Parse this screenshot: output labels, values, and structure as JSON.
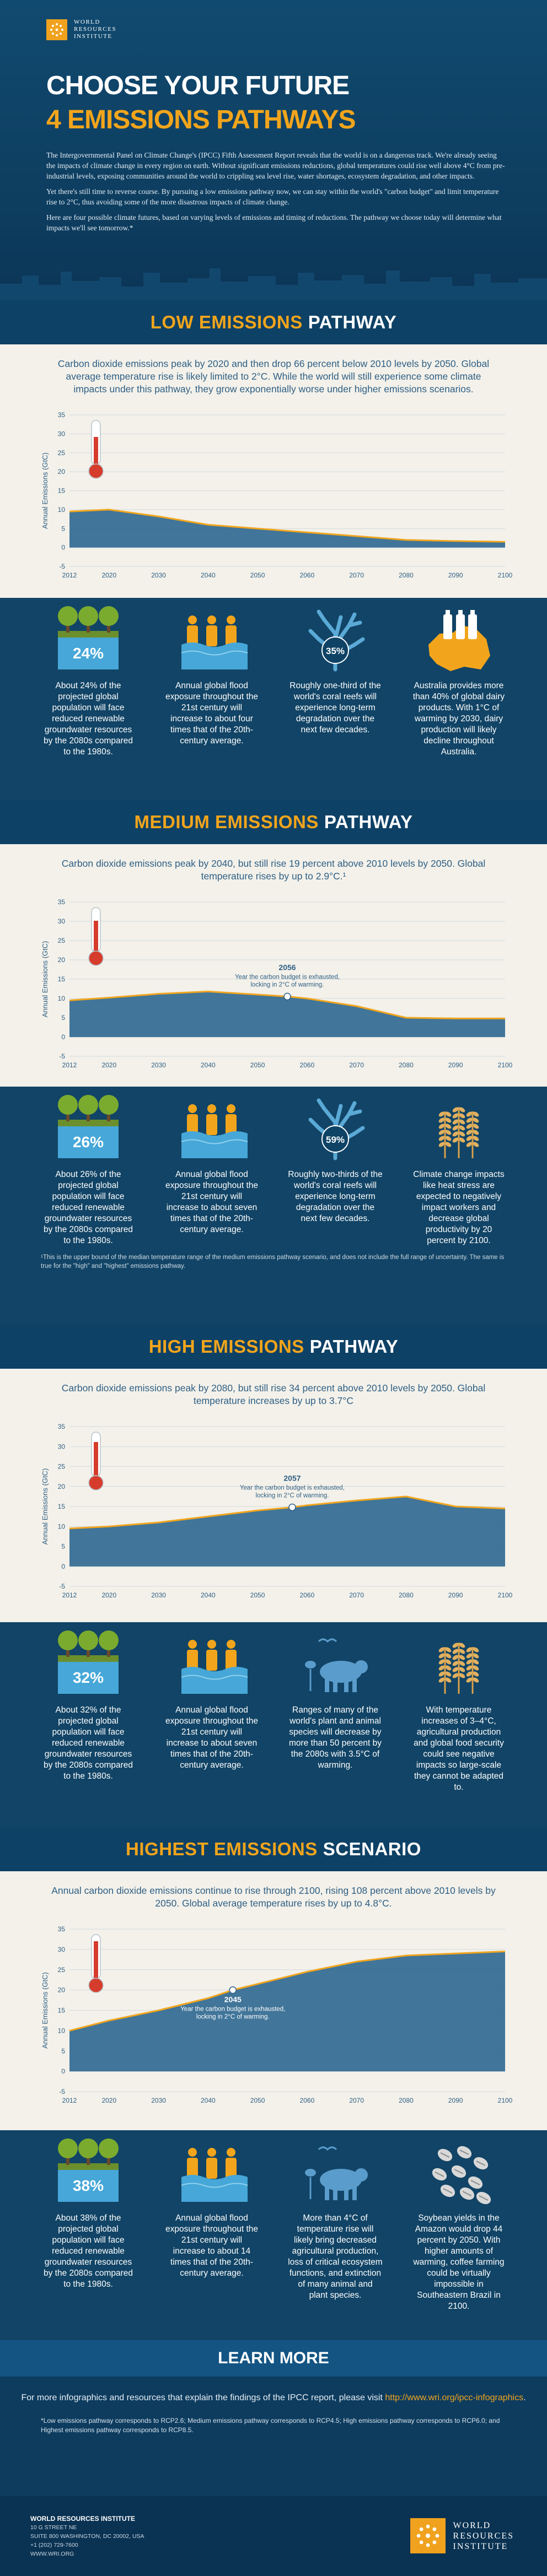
{
  "header": {
    "org_lines": [
      "WORLD",
      "RESOURCES",
      "INSTITUTE"
    ],
    "title_line1": "CHOOSE YOUR FUTURE",
    "title_line2": "4 EMISSIONS PATHWAYS",
    "intro_p1": "The Intergovernmental Panel on Climate Change's (IPCC) Fifth Assessment Report reveals that the world is on a dangerous track. We're already seeing the impacts of climate change in every region on earth. Without significant emissions reductions, global temperatures could rise well above 4°C from pre-industrial levels, exposing communities around the world to crippling sea level rise, water shortages, ecosystem degradation, and other impacts.",
    "intro_p2": "Yet there's still time to reverse course. By pursuing a low emissions pathway now, we can stay within the world's \"carbon budget\" and limit temperature rise to 2°C, thus avoiding some of the more disastrous impacts of climate change.",
    "intro_p3": "Here are four possible climate futures, based on varying levels of emissions and timing of reductions. The pathway we choose today will determine what impacts we'll see tomorrow.*"
  },
  "sections": [
    {
      "title_yellow": "LOW EMISSIONS",
      "title_white": "PATHWAY",
      "description": "Carbon dioxide emissions peak by 2020 and then drop 66 percent below 2010 levels by 2050. Global average temperature rise is likely limited to 2°C. While the world will still experience some climate impacts under this pathway, they grow exponentially worse under higher emissions scenarios.",
      "cards": [
        {
          "icon": "groundwater-trees-icon",
          "badge": "24%",
          "text": "About 24% of the projected global population will face reduced renewable groundwater resources by the 2080s compared to the 1980s."
        },
        {
          "icon": "flood-people-icon",
          "badge": "",
          "text": "Annual global flood exposure throughout the 21st century will increase to about four times that of the 20th-century average."
        },
        {
          "icon": "coral-reef-icon",
          "badge": "35%",
          "text": "Roughly one-third of the world's coral reefs will experience long-term degradation over the next few decades."
        },
        {
          "icon": "australia-milk-icon",
          "badge": "",
          "text": "Australia provides more than 40% of global dairy products. With 1°C of warming by 2030, dairy production will likely decline throughout Australia."
        }
      ]
    },
    {
      "title_yellow": "MEDIUM EMISSIONS",
      "title_white": "PATHWAY",
      "description": "Carbon dioxide emissions peak by 2040, but still rise 19 percent above 2010 levels by 2050. Global temperature rises by up to 2.9°C.¹",
      "annotation_year": "2056",
      "annotation_text": [
        "Year the carbon budget is exhausted,",
        "locking in 2°C of warming."
      ],
      "cards": [
        {
          "icon": "groundwater-trees-icon",
          "badge": "26%",
          "text": "About 26% of the projected global population will face reduced renewable groundwater resources by the 2080s compared to the 1980s."
        },
        {
          "icon": "flood-people-icon",
          "badge": "",
          "text": "Annual global flood exposure throughout the 21st century will increase to about seven times that of the 20th-century average."
        },
        {
          "icon": "coral-reef-icon",
          "badge": "59%",
          "text": "Roughly two-thirds of the world's coral reefs will experience long-term degradation over the next few decades."
        },
        {
          "icon": "wheat-icon",
          "badge": "",
          "text": "Climate change impacts like heat stress are expected to negatively impact workers and decrease global productivity by 20 percent by 2100."
        }
      ],
      "footnote": "¹This is the upper bound of the median temperature range of the medium emissions pathway scenario, and does not include the full range of uncertainty. The same is true for the \"high\" and \"highest\" emissions pathway."
    },
    {
      "title_yellow": "HIGH EMISSIONS",
      "title_white": "PATHWAY",
      "description": "Carbon dioxide emissions peak by 2080, but still rise 34 percent above 2010 levels by 2050. Global temperature increases by up to 3.7°C",
      "annotation_year": "2057",
      "annotation_text": [
        "Year the carbon budget is exhausted,",
        "locking in 2°C of warming."
      ],
      "cards": [
        {
          "icon": "groundwater-trees-icon",
          "badge": "32%",
          "text": "About 32% of the projected global population will face reduced renewable groundwater resources by the 2080s compared to the 1980s."
        },
        {
          "icon": "flood-people-icon",
          "badge": "",
          "text": "Annual global flood exposure throughout the 21st century will increase to about seven times that of the 20th-century average."
        },
        {
          "icon": "animals-icon",
          "badge": "",
          "text": "Ranges of many of the world's plant and animal species will decrease by more than 50 percent by the 2080s with 3.5°C of warming."
        },
        {
          "icon": "wheat-icon",
          "badge": "",
          "text": "With temperature increases of 3–4°C, agricultural production and global food security could see negative impacts so large-scale they cannot be adapted to."
        }
      ]
    },
    {
      "title_yellow": "HIGHEST EMISSIONS",
      "title_white": "SCENARIO",
      "description": "Annual carbon dioxide emissions continue to rise through 2100, rising 108 percent above 2010 levels by 2050. Global average temperature rises by up to 4.8°C.",
      "annotation_year": "2045",
      "annotation_text": [
        "Year the carbon budget is exhausted,",
        "locking in 2°C of warming."
      ],
      "cards": [
        {
          "icon": "groundwater-trees-icon",
          "badge": "38%",
          "text": "About 38% of the projected global population will face reduced renewable groundwater resources by the 2080s compared to the 1980s."
        },
        {
          "icon": "flood-people-icon",
          "badge": "",
          "text": "Annual global flood exposure throughout the 21st century will increase to about 14 times that of the 20th-century average."
        },
        {
          "icon": "animals-icon",
          "badge": "",
          "text": "More than 4°C of temperature rise will likely bring decreased agricultural production, loss of critical ecosystem functions, and extinction of many animal and plant species."
        },
        {
          "icon": "coffee-beans-icon",
          "badge": "",
          "text": "Soybean yields in the Amazon would drop 44 percent by 2050. With higher amounts of warming, coffee farming could be virtually impossible in Southeastern Brazil in 2100."
        }
      ]
    }
  ],
  "chart_data": [
    {
      "type": "area",
      "title": "",
      "xlabel": "",
      "ylabel": "Annual Emissions (GtC)",
      "x": [
        2012,
        2020,
        2030,
        2040,
        2050,
        2060,
        2070,
        2080,
        2090,
        2100
      ],
      "y": [
        9.5,
        10,
        8.2,
        6,
        5,
        4,
        3,
        2,
        1.7,
        1.5
      ],
      "ylim": [
        -5,
        35
      ],
      "yticks": [
        -5,
        0,
        5,
        10,
        15,
        20,
        25,
        30,
        35
      ],
      "grid": true
    },
    {
      "type": "area",
      "title": "",
      "xlabel": "",
      "ylabel": "Annual Emissions (GtC)",
      "x": [
        2012,
        2020,
        2030,
        2040,
        2050,
        2056,
        2060,
        2070,
        2080,
        2090,
        2100
      ],
      "y": [
        9.5,
        10.2,
        11.2,
        11.8,
        11,
        10.5,
        10,
        8,
        5,
        4.8,
        4.8
      ],
      "marker": {
        "x": 2056,
        "y": 10.5
      },
      "ylim": [
        -5,
        35
      ],
      "yticks": [
        -5,
        0,
        5,
        10,
        15,
        20,
        25,
        30,
        35
      ],
      "grid": true
    },
    {
      "type": "area",
      "title": "",
      "xlabel": "",
      "ylabel": "Annual Emissions (GtC)",
      "x": [
        2012,
        2020,
        2030,
        2040,
        2050,
        2057,
        2060,
        2070,
        2080,
        2090,
        2100
      ],
      "y": [
        9.5,
        10,
        11,
        12.5,
        14,
        14.8,
        15.3,
        16.5,
        17.5,
        15,
        14.5
      ],
      "marker": {
        "x": 2057,
        "y": 14.8
      },
      "ylim": [
        -5,
        35
      ],
      "yticks": [
        -5,
        0,
        5,
        10,
        15,
        20,
        25,
        30,
        35
      ],
      "grid": true
    },
    {
      "type": "area",
      "title": "",
      "xlabel": "",
      "ylabel": "Annual Emissions (GtC)",
      "x": [
        2012,
        2020,
        2030,
        2040,
        2045,
        2050,
        2060,
        2070,
        2080,
        2090,
        2100
      ],
      "y": [
        10,
        12.5,
        15,
        18,
        20,
        21.5,
        24.5,
        27,
        28.5,
        29,
        29.5
      ],
      "marker": {
        "x": 2045,
        "y": 20
      },
      "ylim": [
        -5,
        35
      ],
      "yticks": [
        -5,
        0,
        5,
        10,
        15,
        20,
        25,
        30,
        35
      ],
      "grid": true
    }
  ],
  "learn_more": {
    "title": "LEARN MORE",
    "text": "For more infographics and resources that explain the findings of the IPCC report, please visit",
    "link": "http://www.wri.org/ipcc-infographics",
    "note": "*Low emissions pathway corresponds to RCP2.6; Medium emissions pathway corresponds to RCP4.5; High emissions pathway corresponds to RCP6.0; and Highest emissions pathway corresponds to RCP8.5."
  },
  "footer": {
    "org": "WORLD RESOURCES INSTITUTE",
    "address1": "10 G STREET NE",
    "address2": "SUITE 800 WASHINGTON, DC 20002, USA",
    "phone": "+1 (202) 729-7600",
    "web": "WWW.WRI.ORG",
    "logo_lines": [
      "WORLD",
      "RESOURCES",
      "INSTITUTE"
    ]
  },
  "colors": {
    "navy": "#0f4366",
    "gold": "#f2a51c",
    "cream": "#f3f1ea",
    "chart_fill": "#2d6790",
    "chart_line": "#f2a51c"
  }
}
